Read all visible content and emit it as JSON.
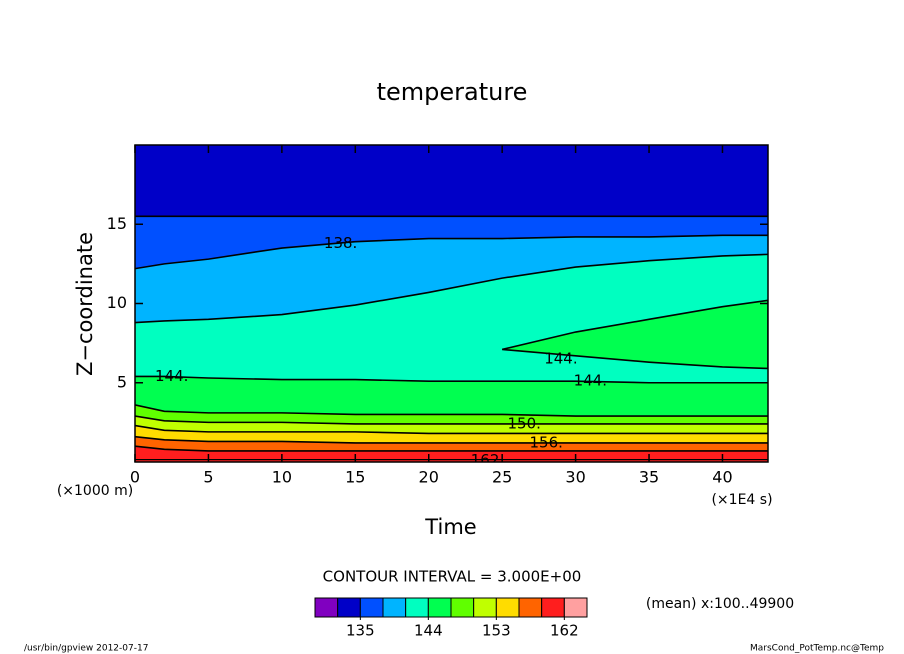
{
  "chart_data": {
    "type": "contour",
    "title": "temperature",
    "xlabel": "Time",
    "ylabel": "Z−coordinate",
    "xunit": "(×1E4 s)",
    "yunit": "(×1000 m)",
    "xlim": [
      0,
      43.1
    ],
    "ylim": [
      0,
      20
    ],
    "xticks": [
      0,
      5,
      10,
      15,
      20,
      25,
      30,
      35,
      40
    ],
    "yticks": [
      5,
      10,
      15
    ],
    "x": [
      0,
      2,
      5,
      10,
      15,
      20,
      25,
      30,
      35,
      40,
      43.1
    ],
    "bands": [
      {
        "value": 132,
        "color": "#0000c8",
        "top": [
          20,
          20,
          20,
          20,
          20,
          20,
          20,
          20,
          20,
          20,
          20
        ]
      },
      {
        "value": 135,
        "color": "#0050ff",
        "top": [
          15.5,
          15.5,
          15.5,
          15.5,
          15.5,
          15.5,
          15.5,
          15.5,
          15.5,
          15.5,
          15.5
        ]
      },
      {
        "value": 138,
        "color": "#00b4ff",
        "top": [
          12.2,
          12.5,
          12.8,
          13.5,
          13.9,
          14.1,
          14.1,
          14.2,
          14.2,
          14.3,
          14.3
        ]
      },
      {
        "value": 141,
        "color": "#00ffc0",
        "top": [
          8.8,
          8.9,
          9.0,
          9.3,
          9.9,
          10.7,
          11.6,
          12.3,
          12.7,
          13.0,
          13.1
        ]
      },
      {
        "value": 144,
        "color": "#00ff50",
        "top": [
          5.4,
          5.4,
          5.3,
          5.2,
          5.2,
          5.1,
          5.1,
          5.1,
          5.0,
          5.0,
          5.0
        ]
      },
      {
        "value": 147,
        "color": "#60ff00",
        "top": [
          3.6,
          3.2,
          3.1,
          3.1,
          3.0,
          3.0,
          3.0,
          2.9,
          2.9,
          2.9,
          2.9
        ]
      },
      {
        "value": 150,
        "color": "#c0ff00",
        "top": [
          2.9,
          2.6,
          2.5,
          2.5,
          2.4,
          2.4,
          2.4,
          2.4,
          2.4,
          2.4,
          2.4
        ]
      },
      {
        "value": 153,
        "color": "#ffdc00",
        "top": [
          2.3,
          2.0,
          1.9,
          1.9,
          1.9,
          1.8,
          1.8,
          1.8,
          1.8,
          1.8,
          1.8
        ]
      },
      {
        "value": 156,
        "color": "#ff6400",
        "top": [
          1.6,
          1.4,
          1.3,
          1.3,
          1.2,
          1.2,
          1.2,
          1.2,
          1.2,
          1.2,
          1.2
        ]
      },
      {
        "value": 159,
        "color": "#ff1e1e",
        "top": [
          1.0,
          0.8,
          0.7,
          0.7,
          0.7,
          0.7,
          0.7,
          0.7,
          0.7,
          0.7,
          0.7
        ]
      }
    ],
    "tongue": {
      "value": 144,
      "color": "#00ff50",
      "x": [
        25,
        30,
        35,
        40,
        43.1,
        43.1,
        40,
        35,
        30,
        25
      ],
      "y": [
        7.1,
        8.2,
        9.0,
        9.8,
        10.2,
        5.9,
        6.0,
        6.3,
        6.7,
        7.1
      ]
    },
    "contour_labels": [
      {
        "label": "138.",
        "x": 14,
        "y": 13.8
      },
      {
        "label": "144.",
        "x": 2.5,
        "y": 5.4
      },
      {
        "label": "144.",
        "x": 29,
        "y": 6.5
      },
      {
        "label": "144.",
        "x": 31,
        "y": 5.1
      },
      {
        "label": "150.",
        "x": 26.5,
        "y": 2.4
      },
      {
        "label": "156.",
        "x": 28,
        "y": 1.2
      },
      {
        "label": "162.",
        "x": 24,
        "y": 0.1
      }
    ],
    "contour_interval": "CONTOUR INTERVAL = 3.000E+00",
    "mean_note": "(mean) x:100..49900",
    "colorbar": {
      "lim": [
        129,
        165
      ],
      "colors": [
        "#8000c0",
        "#0000c8",
        "#0050ff",
        "#00b4ff",
        "#00ffc0",
        "#00ff50",
        "#60ff00",
        "#c0ff00",
        "#ffdc00",
        "#ff6400",
        "#ff1e1e",
        "#ffa0a0"
      ],
      "ticks": [
        135,
        144,
        153,
        162
      ]
    },
    "footer_left": "/usr/bin/gpview  2012-07-17",
    "footer_right": "MarsCond_PotTemp.nc@Temp"
  }
}
